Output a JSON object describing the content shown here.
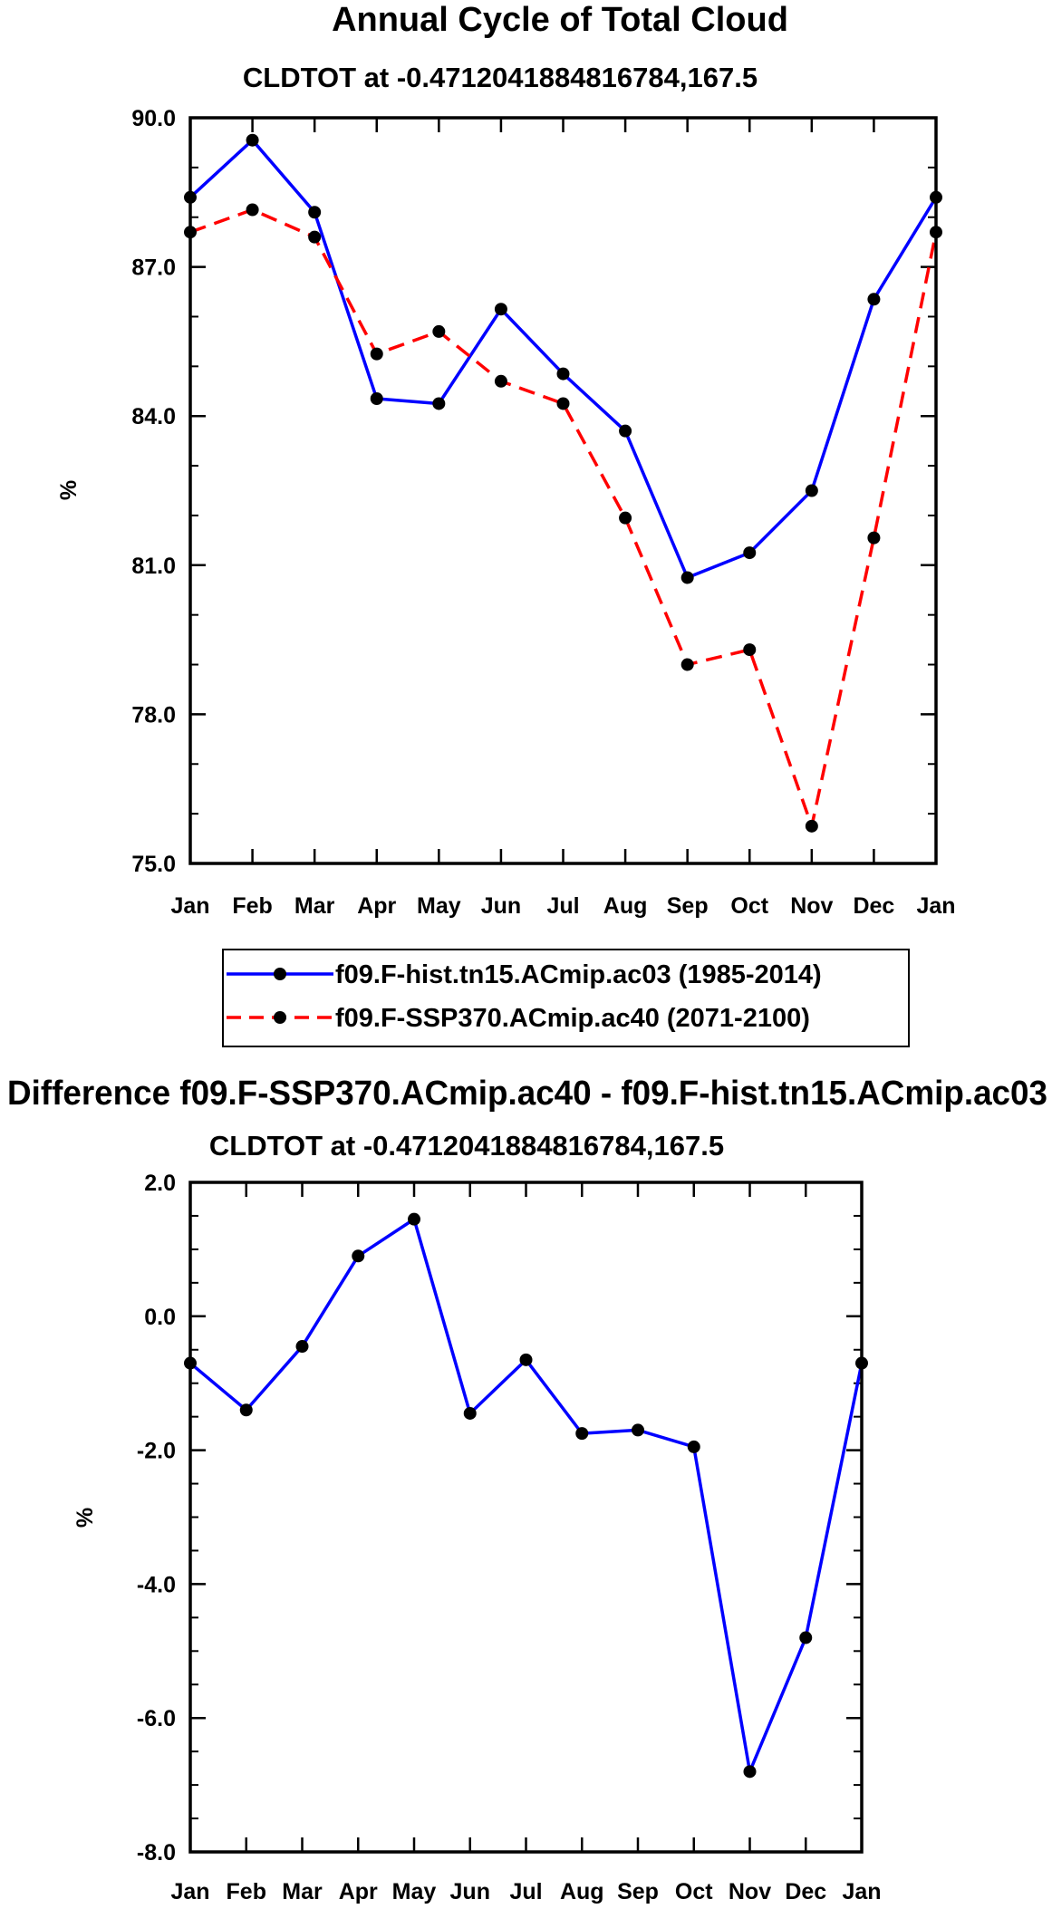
{
  "chart_data": [
    {
      "type": "line",
      "title": "Annual Cycle of Total Cloud",
      "subtitle": "CLDTOT at -0.4712041884816784,167.5",
      "xlabel": "",
      "ylabel": "%",
      "categories": [
        "Jan",
        "Feb",
        "Mar",
        "Apr",
        "May",
        "Jun",
        "Jul",
        "Aug",
        "Sep",
        "Oct",
        "Nov",
        "Dec",
        "Jan"
      ],
      "ylim": [
        75.0,
        90.0
      ],
      "yticks": [
        75.0,
        78.0,
        81.0,
        84.0,
        87.0,
        90.0
      ],
      "ytick_labels": [
        "75.0",
        "78.0",
        "81.0",
        "84.0",
        "87.0",
        "90.0"
      ],
      "ytick_minor_step": 1.0,
      "grid": false,
      "legend_position": "bottom-center",
      "series": [
        {
          "name": "f09.F-hist.tn15.ACmip.ac03 (1985-2014)",
          "color": "#0000ff",
          "line_style": "solid",
          "marker": "dot",
          "values": [
            88.4,
            89.55,
            88.1,
            84.35,
            84.25,
            86.15,
            84.85,
            83.7,
            80.75,
            81.25,
            82.5,
            86.35,
            88.4
          ]
        },
        {
          "name": "f09.F-SSP370.ACmip.ac40 (2071-2100)",
          "color": "#ff0000",
          "line_style": "dashed",
          "marker": "dot",
          "values": [
            87.7,
            88.15,
            87.6,
            85.25,
            85.7,
            84.7,
            84.25,
            81.95,
            79.0,
            79.3,
            75.75,
            81.55,
            87.7
          ]
        }
      ]
    },
    {
      "type": "line",
      "title": "Difference f09.F-SSP370.ACmip.ac40 - f09.F-hist.tn15.ACmip.ac03",
      "subtitle": "CLDTOT at -0.4712041884816784,167.5",
      "xlabel": "",
      "ylabel": "%",
      "categories": [
        "Jan",
        "Feb",
        "Mar",
        "Apr",
        "May",
        "Jun",
        "Jul",
        "Aug",
        "Sep",
        "Oct",
        "Nov",
        "Dec",
        "Jan"
      ],
      "ylim": [
        -8.0,
        2.0
      ],
      "yticks": [
        -8.0,
        -6.0,
        -4.0,
        -2.0,
        0.0,
        2.0
      ],
      "ytick_labels": [
        "-8.0",
        "-6.0",
        "-4.0",
        "-2.0",
        "0.0",
        "2.0"
      ],
      "ytick_minor_step": 0.5,
      "grid": false,
      "series": [
        {
          "name": "Difference",
          "color": "#0000ff",
          "line_style": "solid",
          "marker": "dot",
          "values": [
            -0.7,
            -1.4,
            -0.45,
            0.9,
            1.45,
            -1.45,
            -0.65,
            -1.75,
            -1.7,
            -1.95,
            -6.8,
            -4.8,
            -0.7
          ]
        }
      ]
    }
  ]
}
